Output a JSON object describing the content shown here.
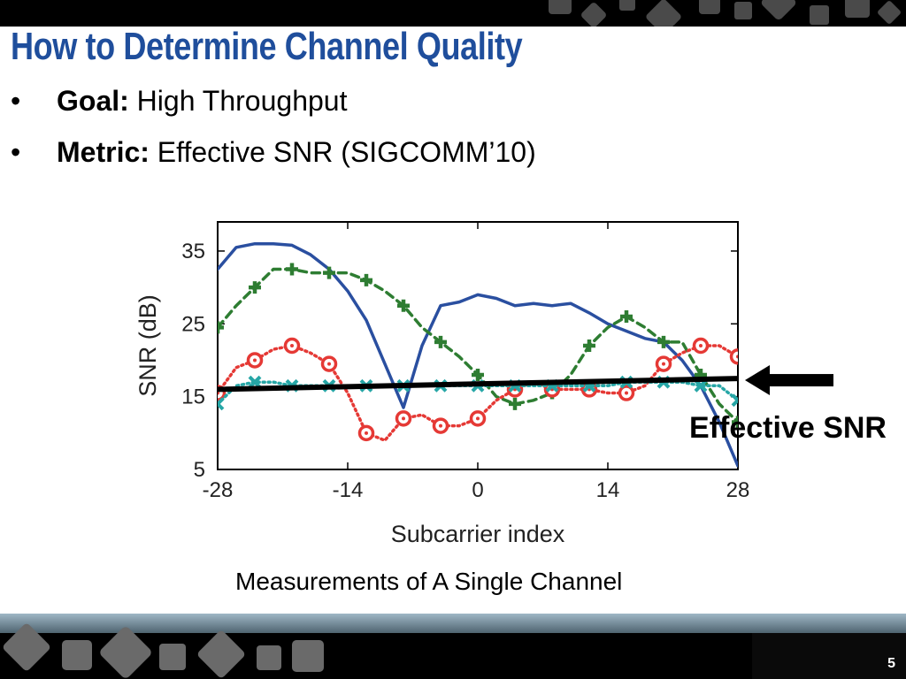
{
  "slide": {
    "title": "How to Determine Channel Quality",
    "bullets": [
      {
        "label": "Goal:",
        "text": " High Throughput"
      },
      {
        "label": "Metric:",
        "text": " Effective SNR (SIGCOMM’10)"
      }
    ],
    "caption": "Measurements of A Single Channel",
    "page_number": "5",
    "bullet_glyph": "•",
    "colors": {
      "title": "#1f4e9c",
      "band": "#000000"
    }
  },
  "chart_data": {
    "type": "line",
    "title": "",
    "xlabel": "Subcarrier index",
    "ylabel": "SNR (dB)",
    "xlim": [
      -28,
      28
    ],
    "ylim": [
      5,
      39
    ],
    "xticks": [
      -28,
      -14,
      0,
      14,
      28
    ],
    "yticks": [
      5,
      15,
      25,
      35
    ],
    "grid": false,
    "legend": "none",
    "annotation": "Effective SNR",
    "series": [
      {
        "color": "#2a4fa0",
        "style": "solid",
        "marker": "none",
        "x": [
          -28,
          -26,
          -24,
          -22,
          -20,
          -18,
          -16,
          -14,
          -12,
          -10,
          -8,
          -6,
          -4,
          -2,
          0,
          2,
          4,
          6,
          8,
          10,
          12,
          14,
          16,
          18,
          20,
          22,
          24,
          26,
          28
        ],
        "y": [
          32.5,
          35.5,
          36,
          36,
          35.8,
          34.5,
          32.5,
          29.5,
          25.5,
          19.5,
          13.5,
          22,
          27.5,
          28,
          29,
          28.5,
          27.5,
          27.8,
          27.5,
          27.8,
          26.5,
          25,
          24,
          23,
          22.5,
          20,
          16.5,
          11.5,
          5.5
        ]
      },
      {
        "color": "#2e7d32",
        "style": "dashed",
        "marker": "plus",
        "x": [
          -28,
          -26,
          -24,
          -22,
          -20,
          -18,
          -16,
          -14,
          -12,
          -10,
          -8,
          -6,
          -4,
          -2,
          0,
          2,
          4,
          6,
          8,
          10,
          12,
          14,
          16,
          18,
          20,
          22,
          24,
          26,
          28
        ],
        "y": [
          24.5,
          27.5,
          30,
          32.5,
          32.5,
          32,
          32,
          32,
          31,
          29.5,
          27.5,
          24.5,
          22.5,
          20.5,
          18,
          15,
          14,
          14.5,
          15.5,
          18,
          22,
          24.5,
          26,
          24.5,
          22.5,
          22.5,
          18,
          14,
          11.5
        ]
      },
      {
        "color": "#e53935",
        "style": "dotted",
        "marker": "circle",
        "x": [
          -28,
          -26,
          -24,
          -22,
          -20,
          -18,
          -16,
          -14,
          -12,
          -10,
          -8,
          -6,
          -4,
          -2,
          0,
          2,
          4,
          6,
          8,
          10,
          12,
          14,
          16,
          18,
          20,
          22,
          24,
          26,
          28
        ],
        "y": [
          15.5,
          19,
          20,
          21.5,
          22,
          21,
          19.5,
          15.5,
          10,
          9,
          12,
          12.5,
          11,
          11,
          12,
          14.5,
          16,
          17,
          16,
          16,
          16,
          15.5,
          15.5,
          16.5,
          19.5,
          21,
          22,
          22,
          20.5
        ]
      },
      {
        "color": "#26a6a6",
        "style": "dotted",
        "marker": "x",
        "x": [
          -28,
          -26,
          -24,
          -22,
          -20,
          -18,
          -16,
          -14,
          -12,
          -10,
          -8,
          -6,
          -4,
          -2,
          0,
          2,
          4,
          6,
          8,
          10,
          12,
          14,
          16,
          18,
          20,
          22,
          24,
          26,
          28
        ],
        "y": [
          14,
          16.5,
          17,
          17,
          16.5,
          16.5,
          16.5,
          16.5,
          16.5,
          16.5,
          16.5,
          16.5,
          16.5,
          16.5,
          16.5,
          16.5,
          16.5,
          16.5,
          16.5,
          16.5,
          16.5,
          16.5,
          17,
          17,
          17,
          17,
          16.5,
          16.5,
          14.5
        ]
      },
      {
        "name": "Effective SNR",
        "color": "#000000",
        "style": "solid",
        "marker": "none",
        "x": [
          -28,
          28
        ],
        "y": [
          16,
          17.5
        ]
      }
    ]
  }
}
